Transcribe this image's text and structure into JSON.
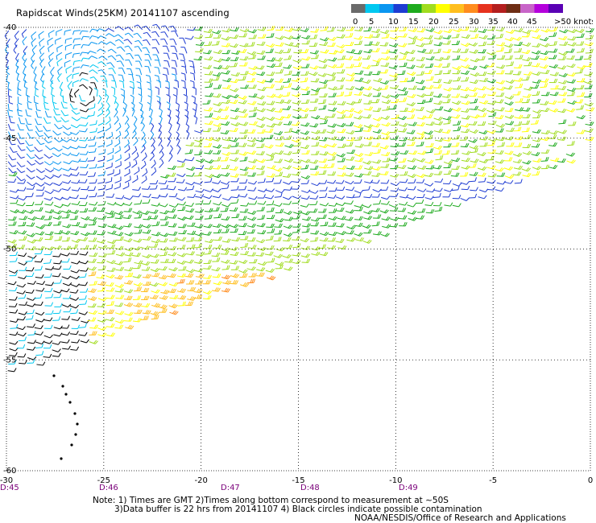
{
  "title": "Rapidscat Winds(25KM) 20141107 ascending",
  "colorbar": {
    "colors": [
      "#6a6a6a",
      "#00c8f0",
      "#0a96f0",
      "#1e3cd2",
      "#1eaa1e",
      "#a0dc1e",
      "#ffff00",
      "#ffbe1e",
      "#ff8c1e",
      "#e6321e",
      "#b41e1e",
      "#6e2d14",
      "#c864c8",
      "#b400dc",
      "#5a00b4"
    ],
    "labels": [
      "0",
      "5",
      "10",
      "15",
      "20",
      "25",
      "30",
      "35",
      "40",
      "45",
      ">50 knots"
    ]
  },
  "axes": {
    "lat_labels": [
      "-40",
      "-45",
      "-50",
      "-55",
      "-60"
    ],
    "lon_labels": [
      "-30",
      "-25",
      "-20",
      "-15",
      "-10",
      "-5",
      "0"
    ],
    "time_labels": [
      "D:45",
      "D:46",
      "D:47",
      "D:48",
      "D:49"
    ]
  },
  "notes": {
    "line1": "Note: 1) Times are GMT 2)Times along bottom correspond to measurement at ~50S",
    "line2": "3)Data buffer is 22 hrs from 20141107 4) Black circles indicate possible contamination",
    "line3": "NOAA/NESDIS/Office of Research and Applications"
  },
  "wind_speed_units": "knots"
}
